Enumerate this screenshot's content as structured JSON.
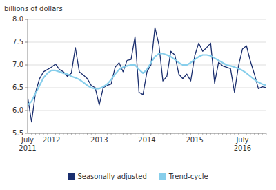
{
  "chart_data": {
    "type": "line",
    "ylabel": "billions of dollars",
    "categories": [
      "July\n2011",
      null,
      null,
      null,
      null,
      null,
      "2012",
      null,
      null,
      null,
      null,
      null,
      null,
      null,
      null,
      null,
      null,
      null,
      "2013",
      null,
      null,
      null,
      null,
      null,
      null,
      null,
      null,
      null,
      null,
      null,
      "2014",
      null,
      null,
      null,
      null,
      null,
      null,
      null,
      null,
      null,
      null,
      null,
      "2015",
      null,
      null,
      null,
      null,
      null,
      null,
      null,
      null,
      null,
      null,
      null,
      "July\n2016",
      null,
      null,
      null,
      null,
      null,
      null
    ],
    "series": [
      {
        "name": "Seasonally adjusted",
        "color": "#1a2e6e",
        "values": [
          6.3,
          5.75,
          6.4,
          6.7,
          6.85,
          6.9,
          6.95,
          7.02,
          6.9,
          6.85,
          6.75,
          6.82,
          7.38,
          6.85,
          6.78,
          6.7,
          6.55,
          6.5,
          6.12,
          6.5,
          6.55,
          6.58,
          6.95,
          7.05,
          6.85,
          7.1,
          7.12,
          7.62,
          6.4,
          6.35,
          6.85,
          7.0,
          7.82,
          7.45,
          6.65,
          6.75,
          7.3,
          7.22,
          6.8,
          6.7,
          6.8,
          6.65,
          7.2,
          7.48,
          7.3,
          7.38,
          7.48,
          6.6,
          7.06,
          6.98,
          6.95,
          6.92,
          6.4,
          6.98,
          7.35,
          7.42,
          7.08,
          6.8,
          6.48,
          6.52,
          6.5
        ]
      },
      {
        "name": "Trend-cycle",
        "color": "#87ceeb",
        "values": [
          6.12,
          6.2,
          6.38,
          6.55,
          6.72,
          6.82,
          6.88,
          6.88,
          6.85,
          6.82,
          6.8,
          6.75,
          6.72,
          6.68,
          6.62,
          6.55,
          6.5,
          6.48,
          6.48,
          6.52,
          6.58,
          6.68,
          6.8,
          6.9,
          6.95,
          6.98,
          7.0,
          7.0,
          6.9,
          6.82,
          6.9,
          7.05,
          7.18,
          7.25,
          7.25,
          7.22,
          7.18,
          7.12,
          7.05,
          7.0,
          7.0,
          7.05,
          7.12,
          7.18,
          7.22,
          7.22,
          7.2,
          7.15,
          7.1,
          7.05,
          7.0,
          6.98,
          6.95,
          6.92,
          6.88,
          6.82,
          6.75,
          6.68,
          6.62,
          6.58,
          6.55
        ]
      }
    ],
    "ylim": [
      5.5,
      8.0
    ],
    "yticks": [
      5.5,
      {
        "value": 6.0,
        "label": "6.0"
      },
      6.5,
      {
        "value": 7.0,
        "label": "7.0"
      },
      7.5,
      {
        "value": 8.0,
        "label": "8.0"
      }
    ],
    "grid": true,
    "legend": "bottom"
  }
}
